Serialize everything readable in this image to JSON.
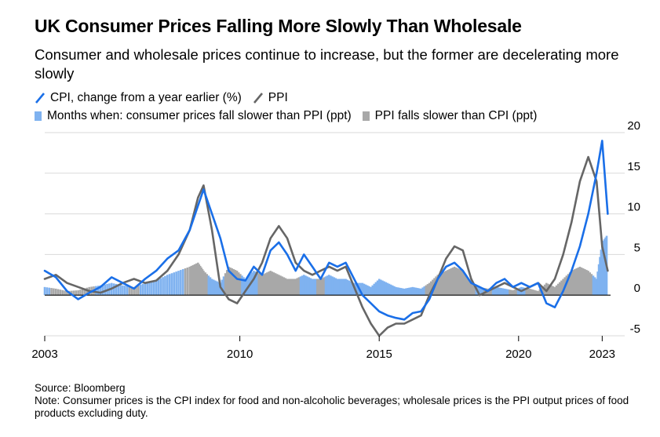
{
  "header": {
    "title": "UK Consumer Prices Falling More Slowly Than Wholesale",
    "subtitle": "Consumer and wholesale prices continue to increase, but the former are decelerating more slowly"
  },
  "legend": {
    "cpi_label": "CPI, change from a year earlier (%)",
    "ppi_label": "PPI",
    "blue_bars_label": "Months when: consumer prices fall slower than PPI (ppt)",
    "gray_bars_label": "PPI falls slower than CPI (ppt)"
  },
  "footer": {
    "source": "Source: Bloomberg",
    "note": "Note: Consumer prices is the CPI index for food and non-alcoholic beverages; wholesale prices is the PPI output prices of food products excluding duty."
  },
  "colors": {
    "cpi": "#1a6fe8",
    "ppi": "#666666",
    "blue_bar": "#7fb2f0",
    "gray_bar": "#a8a8a8",
    "grid": "#d9d9d9"
  },
  "chart_data": {
    "type": "line",
    "x_ticks": [
      "2003",
      "2010",
      "2015",
      "2020",
      "2023"
    ],
    "y_ticks": [
      "20",
      "15",
      "10",
      "5",
      "0",
      "-5"
    ],
    "ylim": [
      -5,
      20
    ],
    "xlim": [
      2003,
      2023.3
    ],
    "series": [
      {
        "name": "CPI, change from a year earlier (%)",
        "x": [
          2003.0,
          2003.4,
          2003.8,
          2004.2,
          2004.6,
          2005.0,
          2005.4,
          2005.8,
          2006.2,
          2006.6,
          2007.0,
          2007.4,
          2007.8,
          2008.2,
          2008.5,
          2008.7,
          2009.0,
          2009.3,
          2009.6,
          2009.9,
          2010.2,
          2010.5,
          2010.8,
          2011.1,
          2011.4,
          2011.7,
          2012.0,
          2012.3,
          2012.6,
          2012.9,
          2013.2,
          2013.5,
          2013.8,
          2014.1,
          2014.4,
          2014.7,
          2015.0,
          2015.3,
          2015.6,
          2015.9,
          2016.2,
          2016.5,
          2016.8,
          2017.1,
          2017.4,
          2017.7,
          2018.0,
          2018.3,
          2018.6,
          2018.9,
          2019.2,
          2019.5,
          2019.8,
          2020.1,
          2020.4,
          2020.7,
          2021.0,
          2021.3,
          2021.6,
          2021.9,
          2022.2,
          2022.5,
          2022.8,
          2023.0,
          2023.2
        ],
        "values": [
          3.0,
          2.2,
          0.5,
          -0.5,
          0.3,
          1.0,
          2.2,
          1.5,
          0.8,
          2.0,
          3.0,
          4.5,
          5.5,
          8.0,
          11.0,
          13.0,
          10.0,
          7.0,
          3.0,
          2.0,
          1.8,
          3.5,
          2.5,
          5.5,
          6.5,
          5.0,
          3.0,
          5.0,
          3.5,
          2.0,
          4.0,
          3.5,
          4.0,
          2.0,
          0.0,
          -1.0,
          -2.0,
          -2.5,
          -2.8,
          -3.0,
          -2.2,
          -2.0,
          -0.5,
          2.0,
          3.5,
          4.0,
          3.0,
          1.5,
          1.0,
          0.5,
          1.5,
          2.0,
          1.0,
          1.5,
          1.0,
          1.5,
          -1.0,
          -1.5,
          0.5,
          3.0,
          6.0,
          10.0,
          15.0,
          19.0,
          10.0
        ]
      },
      {
        "name": "PPI",
        "x": [
          2003.0,
          2003.4,
          2003.8,
          2004.2,
          2004.6,
          2005.0,
          2005.4,
          2005.8,
          2006.2,
          2006.6,
          2007.0,
          2007.4,
          2007.8,
          2008.2,
          2008.5,
          2008.7,
          2009.0,
          2009.3,
          2009.6,
          2009.9,
          2010.2,
          2010.5,
          2010.8,
          2011.1,
          2011.4,
          2011.7,
          2012.0,
          2012.3,
          2012.6,
          2012.9,
          2013.2,
          2013.5,
          2013.8,
          2014.1,
          2014.4,
          2014.7,
          2015.0,
          2015.3,
          2015.6,
          2015.9,
          2016.2,
          2016.5,
          2016.8,
          2017.1,
          2017.4,
          2017.7,
          2018.0,
          2018.3,
          2018.6,
          2018.9,
          2019.2,
          2019.5,
          2019.8,
          2020.1,
          2020.4,
          2020.7,
          2021.0,
          2021.3,
          2021.6,
          2021.9,
          2022.2,
          2022.5,
          2022.8,
          2023.0,
          2023.2
        ],
        "values": [
          2.0,
          2.5,
          1.5,
          1.0,
          0.5,
          0.3,
          0.8,
          1.5,
          2.0,
          1.5,
          1.8,
          3.0,
          5.0,
          8.0,
          12.0,
          13.5,
          8.0,
          1.0,
          -0.5,
          -1.0,
          0.5,
          2.0,
          4.0,
          7.0,
          8.5,
          7.0,
          4.0,
          3.0,
          2.5,
          3.0,
          3.5,
          3.0,
          3.5,
          1.0,
          -1.5,
          -3.5,
          -5.0,
          -4.0,
          -3.5,
          -3.5,
          -3.0,
          -2.5,
          0.0,
          2.0,
          4.5,
          6.0,
          5.5,
          2.0,
          0.0,
          0.5,
          1.0,
          1.5,
          1.0,
          0.5,
          1.0,
          1.5,
          0.5,
          2.0,
          5.0,
          9.0,
          14.0,
          17.0,
          14.0,
          6.0,
          3.0
        ]
      }
    ],
    "bars": {
      "x": [
        2003.0,
        2003.4,
        2003.8,
        2004.2,
        2004.6,
        2005.0,
        2005.4,
        2005.8,
        2006.2,
        2006.6,
        2007.0,
        2007.4,
        2007.8,
        2008.2,
        2008.5,
        2008.7,
        2009.0,
        2009.3,
        2009.6,
        2009.9,
        2010.2,
        2010.5,
        2010.8,
        2011.1,
        2011.4,
        2011.7,
        2012.0,
        2012.3,
        2012.6,
        2012.9,
        2013.2,
        2013.5,
        2013.8,
        2014.1,
        2014.4,
        2014.7,
        2015.0,
        2015.3,
        2015.6,
        2015.9,
        2016.2,
        2016.5,
        2016.8,
        2017.1,
        2017.4,
        2017.7,
        2018.0,
        2018.3,
        2018.6,
        2018.9,
        2019.2,
        2019.5,
        2019.8,
        2020.1,
        2020.4,
        2020.7,
        2021.0,
        2021.3,
        2021.6,
        2021.9,
        2022.2,
        2022.5,
        2022.8,
        2023.0,
        2023.2
      ],
      "values": [
        1.0,
        0.8,
        0.5,
        0.6,
        1.0,
        1.2,
        1.5,
        1.2,
        1.0,
        1.5,
        1.8,
        2.5,
        3.0,
        3.5,
        4.0,
        3.0,
        2.0,
        1.5,
        3.5,
        3.0,
        2.0,
        3.0,
        2.5,
        3.0,
        2.5,
        2.0,
        2.0,
        2.5,
        2.0,
        2.0,
        2.5,
        2.0,
        2.0,
        1.5,
        1.5,
        1.0,
        2.0,
        1.5,
        1.0,
        0.8,
        1.0,
        0.8,
        1.5,
        2.5,
        3.0,
        3.5,
        3.0,
        1.5,
        1.0,
        0.8,
        1.0,
        0.8,
        0.6,
        1.0,
        0.8,
        0.5,
        1.5,
        1.0,
        2.0,
        3.0,
        3.5,
        3.0,
        2.0,
        6.5,
        7.5
      ],
      "kind": [
        "blue",
        "gray",
        "gray",
        "gray",
        "gray",
        "blue",
        "blue",
        "blue",
        "gray",
        "blue",
        "blue",
        "blue",
        "blue",
        "gray",
        "gray",
        "gray",
        "blue",
        "blue",
        "gray",
        "gray",
        "blue",
        "blue",
        "gray",
        "gray",
        "gray",
        "gray",
        "gray",
        "blue",
        "blue",
        "gray",
        "blue",
        "blue",
        "blue",
        "blue",
        "blue",
        "blue",
        "blue",
        "blue",
        "blue",
        "blue",
        "blue",
        "blue",
        "gray",
        "gray",
        "gray",
        "gray",
        "gray",
        "gray",
        "blue",
        "gray",
        "blue",
        "blue",
        "gray",
        "blue",
        "gray",
        "gray",
        "gray",
        "gray",
        "gray",
        "gray",
        "gray",
        "gray",
        "blue",
        "blue",
        "blue"
      ]
    },
    "title": "UK Consumer Prices Falling More Slowly Than Wholesale",
    "xlabel": "",
    "ylabel": "",
    "grid": true,
    "legend_position": "top-left"
  }
}
